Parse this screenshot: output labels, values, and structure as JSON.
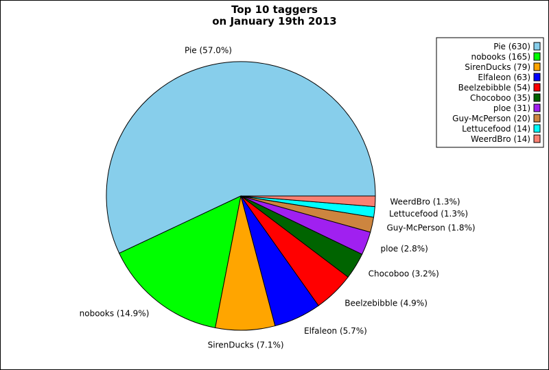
{
  "chart_data": {
    "type": "pie",
    "title": "Top 10 taggers",
    "subtitle": "on January 19th 2013",
    "legend_position": "top-right",
    "slices": [
      {
        "name": "Pie",
        "value": 630,
        "percent_label": "Pie (57.0%)",
        "legend_label": "Pie (630)",
        "color": "#87ceeb"
      },
      {
        "name": "nobooks",
        "value": 165,
        "percent_label": "nobooks (14.9%)",
        "legend_label": "nobooks (165)",
        "color": "#00ff00"
      },
      {
        "name": "SirenDucks",
        "value": 79,
        "percent_label": "SirenDucks (7.1%)",
        "legend_label": "SirenDucks (79)",
        "color": "#ffa500"
      },
      {
        "name": "Elfaleon",
        "value": 63,
        "percent_label": "Elfaleon (5.7%)",
        "legend_label": "Elfaleon (63)",
        "color": "#0000ff"
      },
      {
        "name": "Beelzebibble",
        "value": 54,
        "percent_label": "Beelzebibble (4.9%)",
        "legend_label": "Beelzebibble (54)",
        "color": "#ff0000"
      },
      {
        "name": "Chocoboo",
        "value": 35,
        "percent_label": "Chocoboo (3.2%)",
        "legend_label": "Chocoboo (35)",
        "color": "#006400"
      },
      {
        "name": "ploe",
        "value": 31,
        "percent_label": "ploe (2.8%)",
        "legend_label": "ploe (31)",
        "color": "#a020f0"
      },
      {
        "name": "Guy-McPerson",
        "value": 20,
        "percent_label": "Guy-McPerson (1.8%)",
        "legend_label": "Guy-McPerson (20)",
        "color": "#cd853f"
      },
      {
        "name": "Lettucefood",
        "value": 14,
        "percent_label": "Lettucefood (1.3%)",
        "legend_label": "Lettucefood (14)",
        "color": "#00ffff"
      },
      {
        "name": "WeerdBro",
        "value": 14,
        "percent_label": "WeerdBro (1.3%)",
        "legend_label": "WeerdBro (14)",
        "color": "#fa8072"
      }
    ]
  }
}
